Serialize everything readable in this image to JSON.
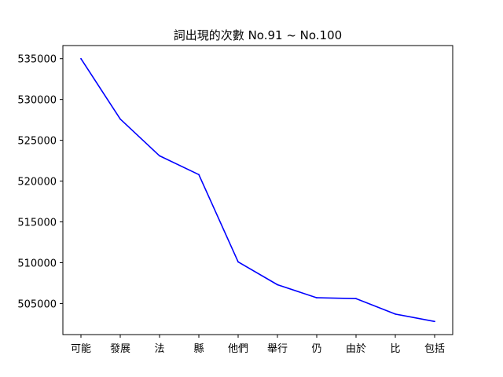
{
  "chart_data": {
    "type": "line",
    "title": "詞出現的次數 No.91 ~ No.100",
    "xlabel": "",
    "ylabel": "",
    "categories": [
      "可能",
      "發展",
      "法",
      "縣",
      "他們",
      "舉行",
      "仍",
      "由於",
      "比",
      "包括"
    ],
    "series": [
      {
        "values": [
          535000,
          527600,
          523100,
          520800,
          510100,
          507300,
          505700,
          505600,
          503700,
          502800
        ],
        "color": "#0000ff"
      }
    ],
    "yticks": [
      "505000",
      "510000",
      "515000",
      "520000",
      "525000",
      "530000",
      "535000"
    ],
    "ylim": [
      501190,
      536610
    ],
    "grid": false,
    "legend": "none"
  }
}
